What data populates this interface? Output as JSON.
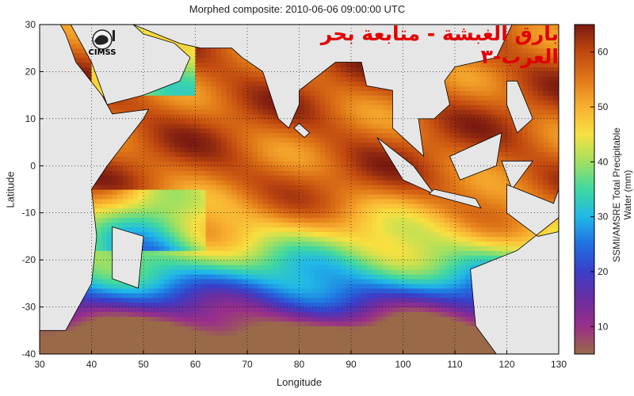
{
  "chart_data": {
    "type": "heatmap",
    "title": "Morphed composite: 2010-06-06 09:00:00 UTC",
    "overlay_text": "بارق الغبشة - متابعة بحر العرب-٣",
    "logo_text": "CIMSS",
    "xlabel": "Longitude",
    "ylabel": "Latitude",
    "colorbar_label": "SSMI/AMSRE Total Precipitable Water (mm)",
    "xlim": [
      30,
      130
    ],
    "ylim": [
      -40,
      30
    ],
    "xticks": [
      30,
      40,
      50,
      60,
      70,
      80,
      90,
      100,
      110,
      120,
      130
    ],
    "yticks": [
      -40,
      -30,
      -20,
      -10,
      0,
      10,
      20,
      30
    ],
    "colorbar_range": [
      5,
      65
    ],
    "colorbar_ticks": [
      10,
      20,
      30,
      40,
      50,
      60
    ],
    "grid": true,
    "colors": {
      "land": "#e6e6e6",
      "coast": "#000000",
      "colormap": [
        "#9a6a48",
        "#9a2f8a",
        "#6a2ea0",
        "#3a3ec8",
        "#2070e0",
        "#20b8e8",
        "#40d8a0",
        "#a0e060",
        "#f8e040",
        "#f8b030",
        "#e07818",
        "#c04810",
        "#7a1a10"
      ]
    }
  }
}
